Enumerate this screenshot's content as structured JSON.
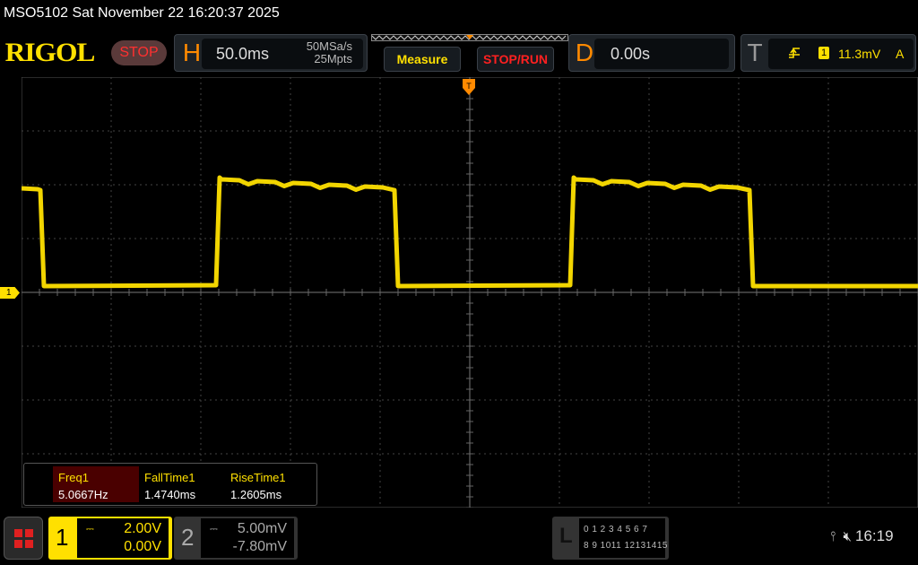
{
  "title_bar": {
    "text": "MSO5102  Sat November 22 16:20:37 2025"
  },
  "brand": {
    "logo": "RIGOL",
    "run_state": "STOP"
  },
  "horizontal": {
    "letter": "H",
    "timebase": "50.0ms",
    "sample_rate": "50MSa/s",
    "memory_depth": "25Mpts"
  },
  "buttons": {
    "measure": "Measure",
    "stop_run": "STOP/RUN"
  },
  "delay": {
    "letter": "D",
    "value": "0.00s"
  },
  "trigger": {
    "letter": "T",
    "edge_icon": "rising-edge-icon",
    "source": "1",
    "level": "11.3mV",
    "mode": "A"
  },
  "measurements": [
    {
      "label": "Freq1",
      "value": "5.0667Hz"
    },
    {
      "label": "FallTime1",
      "value": "1.4740ms"
    },
    {
      "label": "RiseTime1",
      "value": "1.2605ms"
    }
  ],
  "channels": [
    {
      "number": "1",
      "scale": "2.00V",
      "offset": "0.00V",
      "color": "#ffe000",
      "coupling_icon": "dc-coupling-icon"
    },
    {
      "number": "2",
      "scale": "5.00mV",
      "offset": "-7.80mV",
      "color": "#aaaaaa",
      "coupling_icon": "dc-coupling-icon"
    }
  ],
  "logic": {
    "letter": "L",
    "row1": "0 1 2 3  4 5 6 7",
    "row2": "8 9 1011 12131415"
  },
  "ch1_marker": "1",
  "status": {
    "usb_icon": "usb-icon",
    "mute_icon": "speaker-muted-icon",
    "time": "16:19"
  },
  "colors": {
    "trace": "#ffe000",
    "accent": "#ff8a00",
    "stop": "#ff2020"
  }
}
